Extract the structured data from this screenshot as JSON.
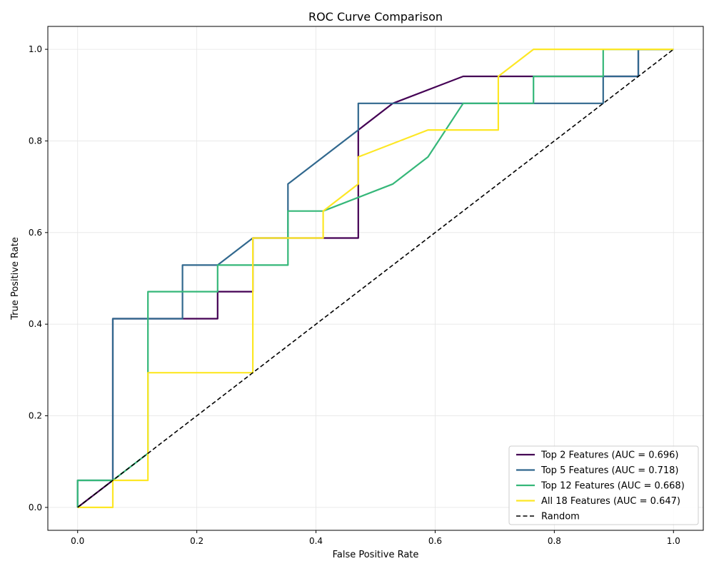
{
  "chart_data": {
    "type": "line",
    "title": "ROC Curve Comparison",
    "xlabel": "False Positive Rate",
    "ylabel": "True Positive Rate",
    "xlim": [
      -0.05,
      1.05
    ],
    "ylim": [
      -0.05,
      1.05
    ],
    "xticks": [
      "0.0",
      "0.2",
      "0.4",
      "0.6",
      "0.8",
      "1.0"
    ],
    "yticks": [
      "0.0",
      "0.2",
      "0.4",
      "0.6",
      "0.8",
      "1.0"
    ],
    "grid": true,
    "legend_position": "lower-right",
    "series": [
      {
        "name": "Top 2 Features (AUC = 0.696)",
        "color": "#440154",
        "style": "solid",
        "x": [
          0,
          0.059,
          0.059,
          0.235,
          0.235,
          0.294,
          0.294,
          0.471,
          0.471,
          0.529,
          0.647,
          0.941,
          0.941,
          1.0
        ],
        "y": [
          0,
          0.059,
          0.412,
          0.412,
          0.471,
          0.471,
          0.588,
          0.588,
          0.824,
          0.882,
          0.941,
          0.941,
          1.0,
          1.0
        ]
      },
      {
        "name": "Top 5 Features (AUC = 0.718)",
        "color": "#31688e",
        "style": "solid",
        "x": [
          0,
          0,
          0.059,
          0.059,
          0.176,
          0.176,
          0.235,
          0.294,
          0.353,
          0.353,
          0.471,
          0.471,
          0.882,
          0.882,
          0.941,
          0.941,
          1.0
        ],
        "y": [
          0,
          0.059,
          0.059,
          0.412,
          0.412,
          0.529,
          0.529,
          0.588,
          0.588,
          0.706,
          0.824,
          0.882,
          0.882,
          0.941,
          0.941,
          1.0,
          1.0
        ]
      },
      {
        "name": "Top 12 Features (AUC = 0.668)",
        "color": "#35b779",
        "style": "solid",
        "x": [
          0,
          0,
          0.059,
          0.059,
          0.118,
          0.118,
          0.235,
          0.235,
          0.353,
          0.353,
          0.412,
          0.529,
          0.588,
          0.647,
          0.765,
          0.765,
          0.882,
          0.882,
          1.0
        ],
        "y": [
          0,
          0.059,
          0.059,
          0.059,
          0.118,
          0.471,
          0.471,
          0.529,
          0.529,
          0.647,
          0.647,
          0.706,
          0.765,
          0.882,
          0.882,
          0.941,
          0.941,
          1.0,
          1.0
        ]
      },
      {
        "name": "All 18 Features (AUC = 0.647)",
        "color": "#fde725",
        "style": "solid",
        "x": [
          0,
          0.059,
          0.059,
          0.118,
          0.118,
          0.294,
          0.294,
          0.412,
          0.412,
          0.471,
          0.471,
          0.588,
          0.706,
          0.706,
          0.765,
          1.0
        ],
        "y": [
          0,
          0,
          0.059,
          0.059,
          0.294,
          0.294,
          0.588,
          0.588,
          0.647,
          0.706,
          0.765,
          0.824,
          0.824,
          0.941,
          1.0,
          1.0
        ]
      },
      {
        "name": "Random",
        "color": "#000000",
        "style": "dashed",
        "x": [
          0,
          1
        ],
        "y": [
          0,
          1
        ]
      }
    ]
  }
}
